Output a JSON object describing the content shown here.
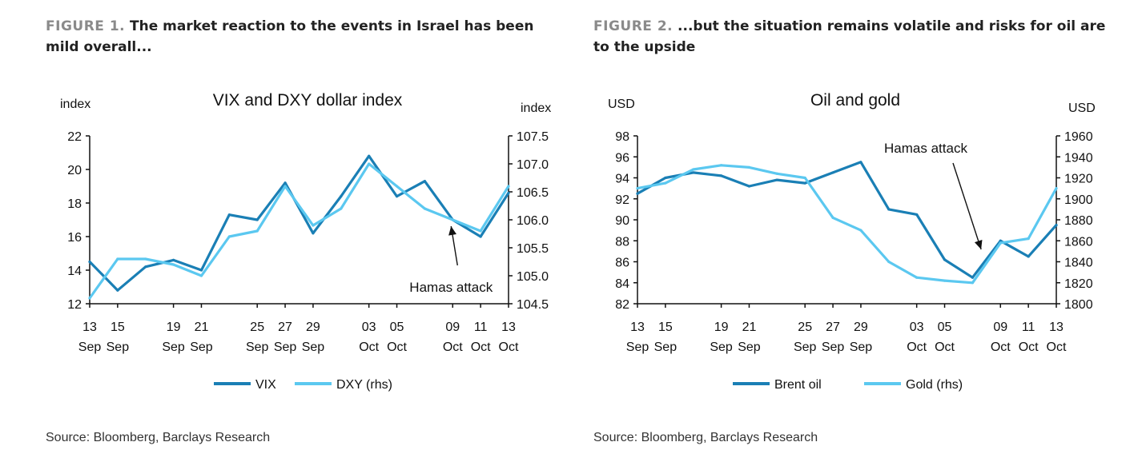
{
  "figures": [
    {
      "label": "FIGURE 1.",
      "title": "The market reaction to the events in Israel has been mild overall...",
      "source": "Source: Bloomberg, Barclays Research"
    },
    {
      "label": "FIGURE 2.",
      "title": "...but the situation remains volatile and risks for oil are to the upside",
      "source": "Source: Bloomberg, Barclays Research"
    }
  ],
  "chart_data": [
    {
      "type": "line",
      "title": "VIX and DXY dollar index",
      "ylabel_left": "index",
      "ylabel_right": "index",
      "ylim_left": [
        12,
        22
      ],
      "ylim_right": [
        104.5,
        107.5
      ],
      "yticks_left": [
        "12",
        "14",
        "16",
        "18",
        "20",
        "22"
      ],
      "yticks_right": [
        "104.5",
        "105.0",
        "105.5",
        "106.0",
        "106.5",
        "107.0",
        "107.5"
      ],
      "x_days": [
        13,
        15,
        17,
        19,
        21,
        23,
        25,
        27,
        29,
        31,
        33,
        35,
        37,
        39,
        41,
        43
      ],
      "xtick_days": [
        13,
        15,
        19,
        21,
        25,
        27,
        29,
        33,
        35,
        39,
        41,
        43
      ],
      "xtick_labels": [
        "13 Sep",
        "15 Sep",
        "19 Sep",
        "21 Sep",
        "25 Sep",
        "27 Sep",
        "29 Sep",
        "03 Oct",
        "05 Oct",
        "09 Oct",
        "11 Oct",
        "13 Oct"
      ],
      "series": [
        {
          "name": "VIX",
          "axis": "left",
          "color": "#1a7fb5",
          "values": [
            14.5,
            12.8,
            14.2,
            14.6,
            14.0,
            17.3,
            17.0,
            19.2,
            16.2,
            18.4,
            20.8,
            18.4,
            19.3,
            17.0,
            16.0,
            18.6
          ]
        },
        {
          "name": "DXY (rhs)",
          "axis": "right",
          "color": "#5bc8f0",
          "values": [
            104.6,
            105.3,
            105.3,
            105.2,
            105.0,
            105.7,
            105.8,
            106.6,
            105.9,
            106.2,
            107.0,
            106.6,
            106.2,
            106.0,
            105.8,
            106.6
          ]
        }
      ],
      "annotation": {
        "text": "Hamas attack",
        "day": 39
      }
    },
    {
      "type": "line",
      "title": "Oil and gold",
      "ylabel_left": "USD",
      "ylabel_right": "USD",
      "ylim_left": [
        82,
        98
      ],
      "ylim_right": [
        1800,
        1960
      ],
      "yticks_left": [
        "82",
        "84",
        "86",
        "88",
        "90",
        "92",
        "94",
        "96",
        "98"
      ],
      "yticks_right": [
        "1800",
        "1820",
        "1840",
        "1860",
        "1880",
        "1900",
        "1920",
        "1940",
        "1960"
      ],
      "x_days": [
        13,
        15,
        17,
        19,
        21,
        23,
        25,
        27,
        29,
        31,
        33,
        35,
        37,
        39,
        41,
        43
      ],
      "xtick_days": [
        13,
        15,
        19,
        21,
        25,
        27,
        29,
        33,
        35,
        39,
        41,
        43
      ],
      "xtick_labels": [
        "13 Sep",
        "15 Sep",
        "19 Sep",
        "21 Sep",
        "25 Sep",
        "27 Sep",
        "29 Sep",
        "03 Oct",
        "05 Oct",
        "09 Oct",
        "11 Oct",
        "13 Oct"
      ],
      "series": [
        {
          "name": "Brent  oil",
          "axis": "left",
          "color": "#1a7fb5",
          "values": [
            92.5,
            94.0,
            94.5,
            94.2,
            93.2,
            93.8,
            93.5,
            94.5,
            95.5,
            91.0,
            90.5,
            86.2,
            84.5,
            88.0,
            86.5,
            89.5
          ]
        },
        {
          "name": "Gold (rhs)",
          "axis": "right",
          "color": "#5bc8f0",
          "values": [
            1910,
            1915,
            1928,
            1932,
            1930,
            1924,
            1920,
            1882,
            1870,
            1840,
            1825,
            1822,
            1820,
            1858,
            1862,
            1910
          ]
        }
      ],
      "annotation": {
        "text": "Hamas attack",
        "day": 37.5
      }
    }
  ]
}
